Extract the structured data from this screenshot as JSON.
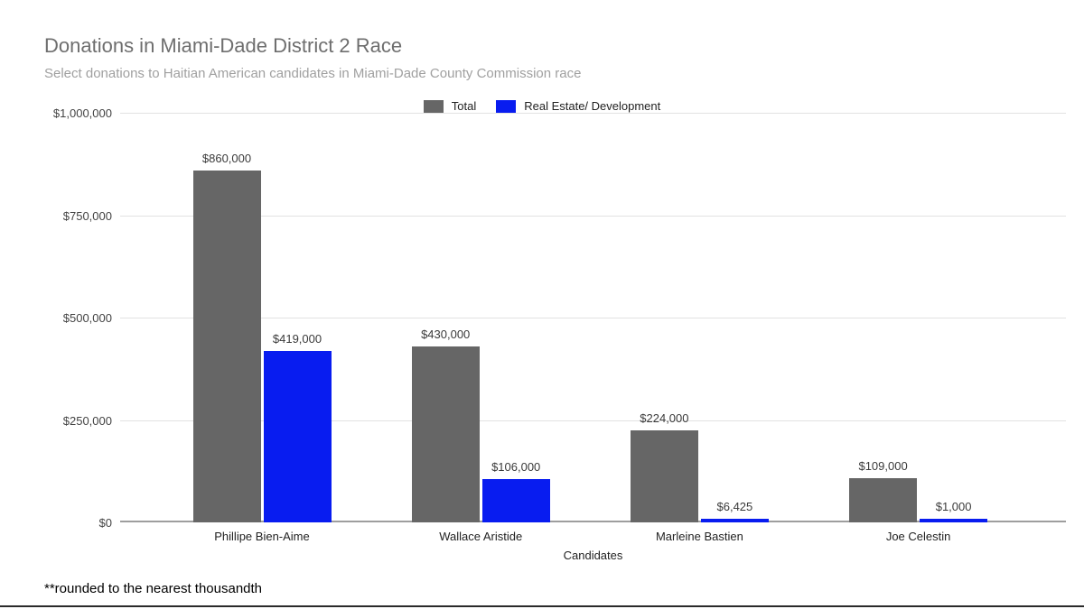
{
  "page": {
    "footnote": "**rounded to the nearest thousandth"
  },
  "chart_data": {
    "type": "bar",
    "title": "Donations in Miami-Dade District 2 Race",
    "subtitle": "Select donations to Haitian American candidates in Miami-Dade County Commission race",
    "xlabel": "Candidates",
    "ylabel": "",
    "categories": [
      "Phillipe Bien-Aime",
      "Wallace Aristide",
      "Marleine Bastien",
      "Joe Celestin"
    ],
    "series": [
      {
        "name": "Total",
        "color": "#666666",
        "values": [
          860000,
          430000,
          224000,
          109000
        ],
        "labels": [
          "$860,000",
          "$430,000",
          "$224,000",
          "$109,000"
        ]
      },
      {
        "name": "Real Estate/ Development",
        "color": "#081cf0",
        "values": [
          419000,
          106000,
          6425,
          1000
        ],
        "labels": [
          "$419,000",
          "$106,000",
          "$6,425",
          "$1,000"
        ]
      }
    ],
    "ylim": [
      0,
      1000000
    ],
    "yticks": [
      "$1,000,000",
      "$750,000",
      "$500,000",
      "$250,000",
      "$0"
    ],
    "grid": true,
    "legend_position": "top"
  }
}
